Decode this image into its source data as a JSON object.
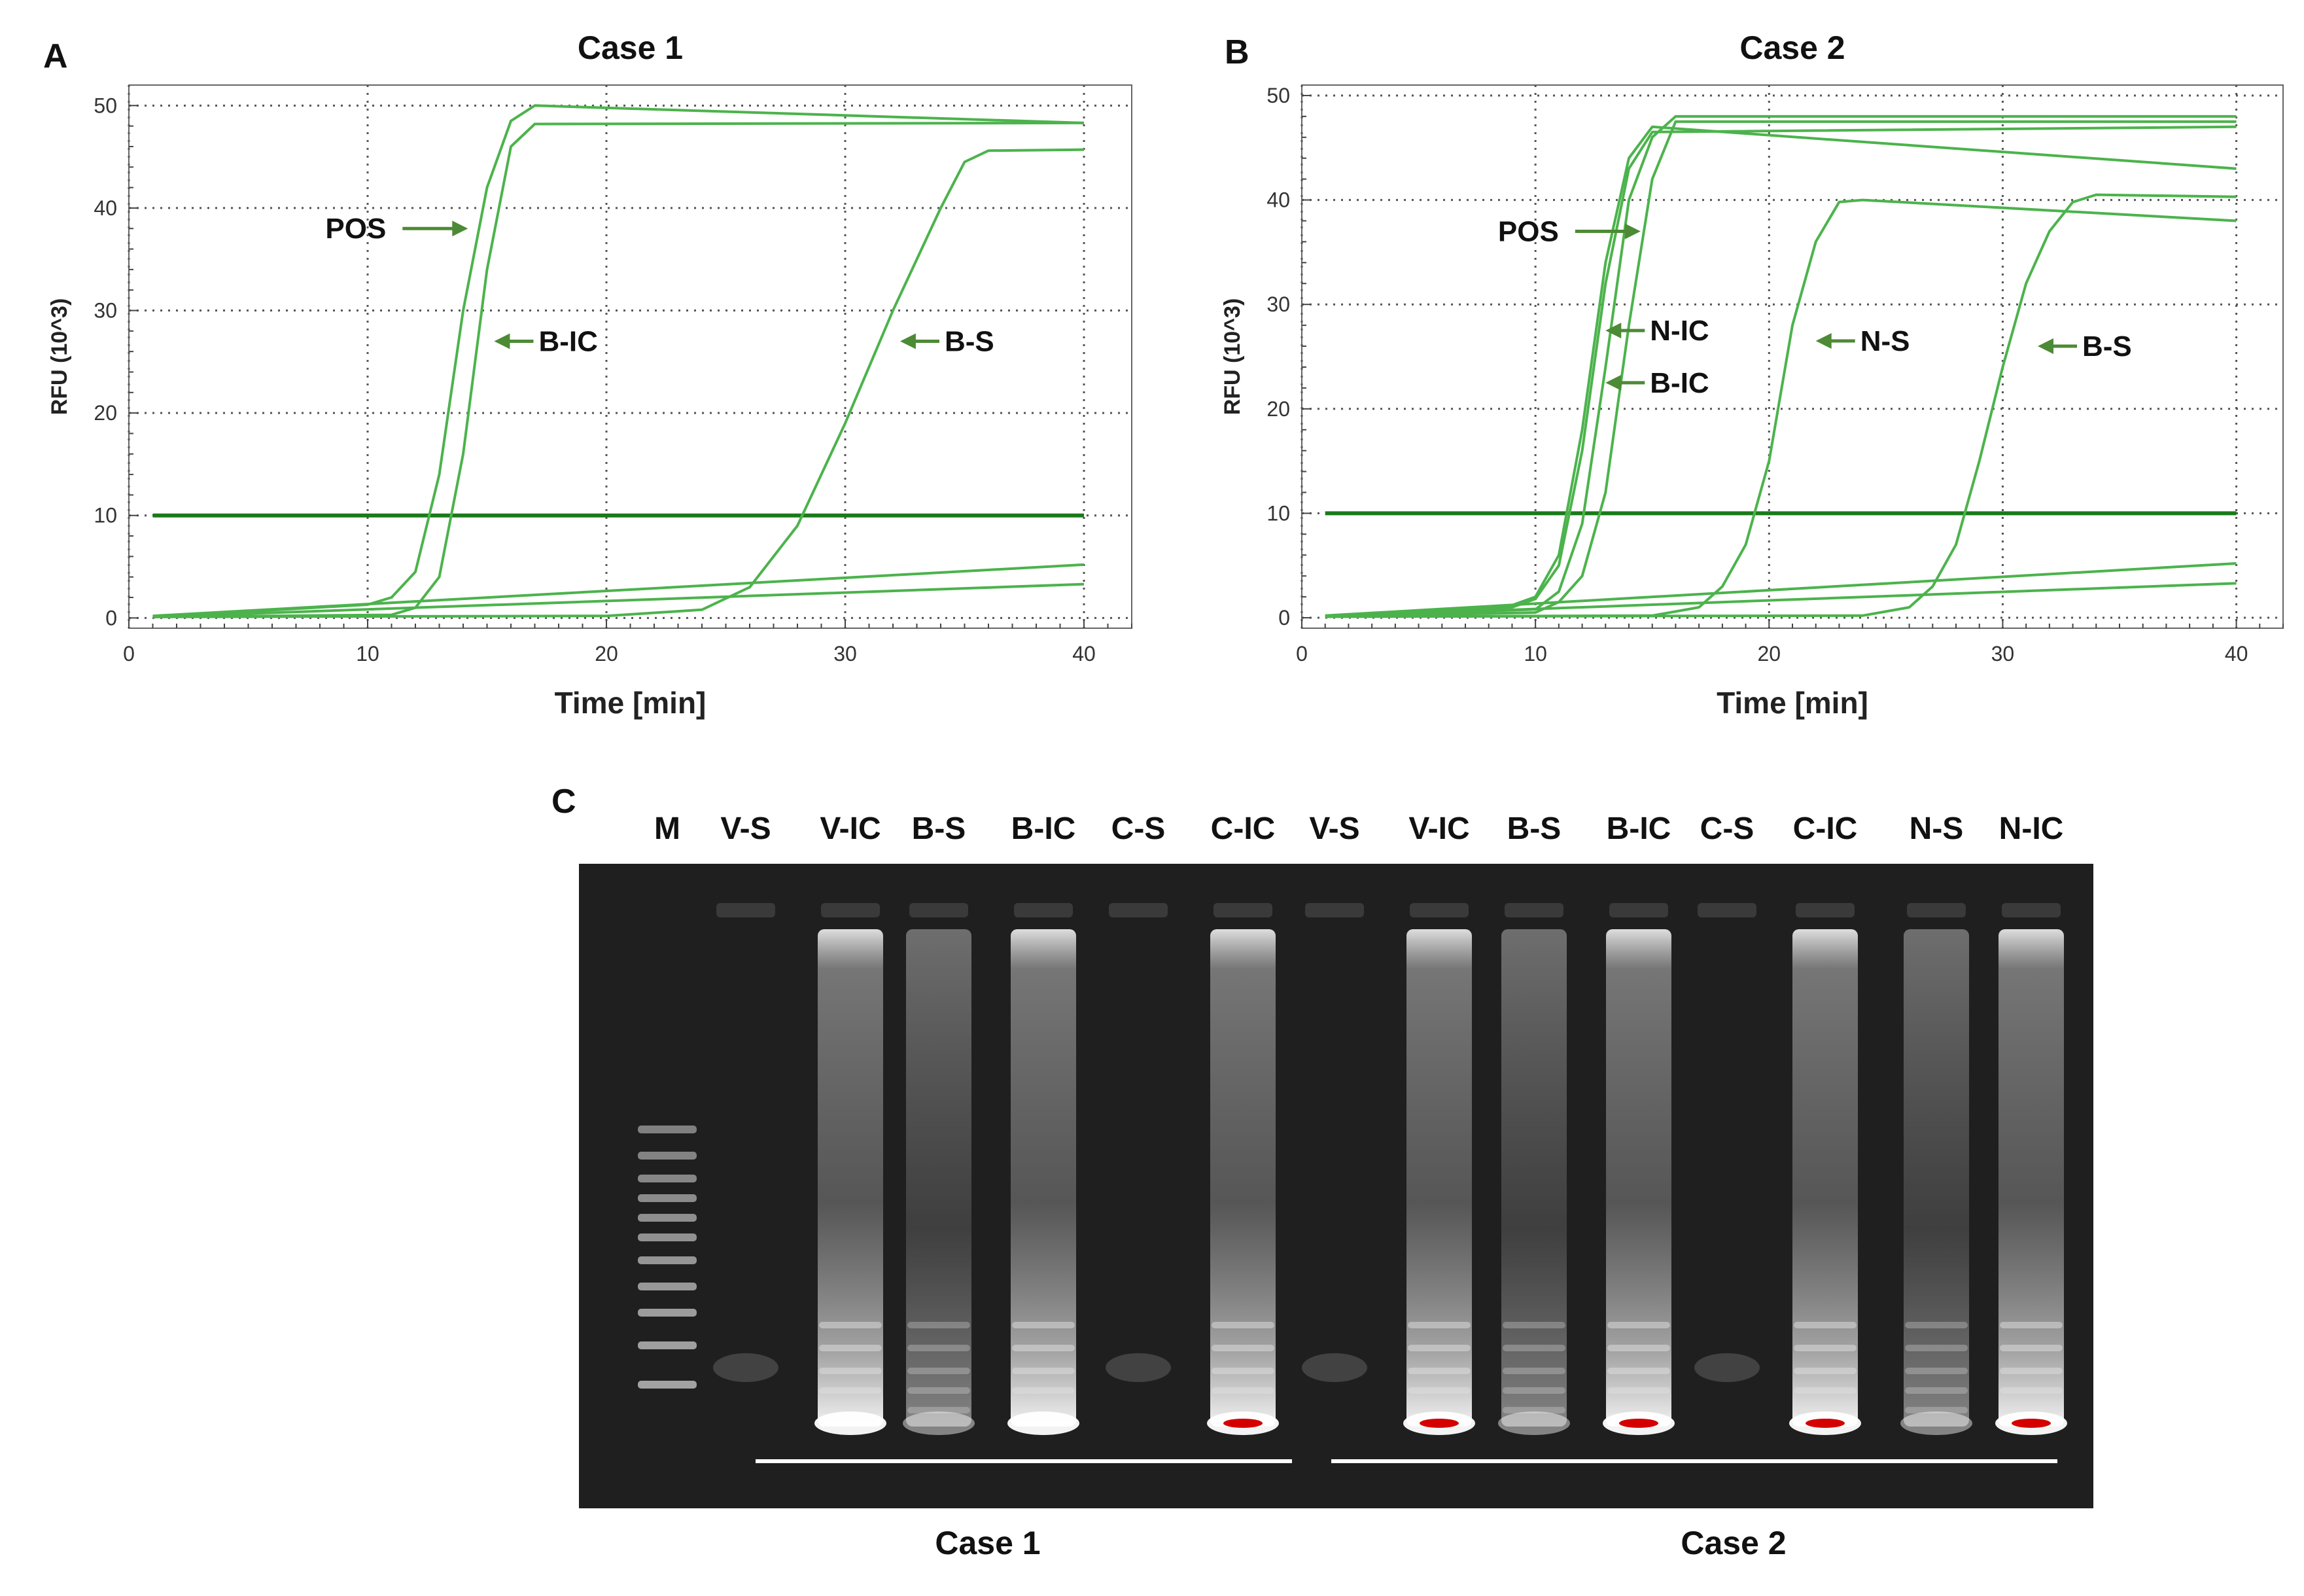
{
  "panels": {
    "a": "A",
    "b": "B",
    "c": "C"
  },
  "colors": {
    "curve": "#4cb34c",
    "threshold": "#1a7a1a",
    "arrow": "#4d8a35",
    "gel": "#1f1f1f"
  },
  "chart_data": [
    {
      "type": "line",
      "title": "Case 1",
      "xlabel": "Time [min]",
      "ylabel": "RFU (10^3)",
      "xlim": [
        0,
        42
      ],
      "ylim": [
        -1,
        52
      ],
      "xticks": [
        "0",
        "10",
        "20",
        "30",
        "40"
      ],
      "yticks": [
        "0",
        "10",
        "20",
        "30",
        "40",
        "50"
      ],
      "grid": true,
      "threshold": 10,
      "series": [
        {
          "points": [
            [
              1,
              0.1
            ],
            [
              10,
              1.3
            ],
            [
              11,
              2
            ],
            [
              12,
              4.5
            ],
            [
              13,
              14
            ],
            [
              14,
              30
            ],
            [
              15,
              42
            ],
            [
              16,
              48.5
            ],
            [
              17,
              50
            ],
            [
              40,
              48.3
            ]
          ]
        },
        {
          "points": [
            [
              1,
              0.1
            ],
            [
              11,
              0.3
            ],
            [
              12,
              1
            ],
            [
              13,
              4
            ],
            [
              14,
              16
            ],
            [
              15,
              34
            ],
            [
              16,
              46
            ],
            [
              17,
              48.2
            ],
            [
              40,
              48.3
            ]
          ]
        },
        {
          "points": [
            [
              1,
              0.1
            ],
            [
              20,
              0.2
            ],
            [
              24,
              0.8
            ],
            [
              26,
              3
            ],
            [
              28,
              9
            ],
            [
              30,
              19
            ],
            [
              32,
              30
            ],
            [
              34,
              40
            ],
            [
              35,
              44.5
            ],
            [
              36,
              45.6
            ],
            [
              40,
              45.7
            ]
          ]
        },
        {
          "points": [
            [
              1,
              0.2
            ],
            [
              40,
              5.2
            ]
          ]
        },
        {
          "points": [
            [
              1,
              0.1
            ],
            [
              40,
              3.3
            ]
          ]
        }
      ],
      "annotations": [
        {
          "text": "POS",
          "x": 14.2,
          "y": 38
        },
        {
          "text": "B-IC",
          "x": 15.3,
          "y": 27
        },
        {
          "text": "B-S",
          "x": 32.3,
          "y": 27
        }
      ]
    },
    {
      "type": "line",
      "title": "Case 2",
      "xlabel": "Time [min]",
      "ylabel": "RFU (10^3)",
      "xlim": [
        0,
        42
      ],
      "ylim": [
        -1,
        51
      ],
      "xticks": [
        "0",
        "10",
        "20",
        "30",
        "40"
      ],
      "yticks": [
        "0",
        "10",
        "20",
        "30",
        "40",
        "50"
      ],
      "grid": true,
      "threshold": 10,
      "series": [
        {
          "points": [
            [
              1,
              0.1
            ],
            [
              9,
              1.2
            ],
            [
              10,
              2
            ],
            [
              11,
              6
            ],
            [
              12,
              18
            ],
            [
              13,
              34
            ],
            [
              14,
              44
            ],
            [
              15,
              47
            ],
            [
              40,
              43
            ]
          ]
        },
        {
          "points": [
            [
              1,
              0.1
            ],
            [
              9,
              1
            ],
            [
              10,
              1.8
            ],
            [
              11,
              5
            ],
            [
              12,
              16
            ],
            [
              13,
              32
            ],
            [
              14,
              43
            ],
            [
              15,
              46.5
            ],
            [
              40,
              47
            ]
          ]
        },
        {
          "points": [
            [
              1,
              0.1
            ],
            [
              10,
              0.8
            ],
            [
              11,
              2.5
            ],
            [
              12,
              9
            ],
            [
              13,
              24
            ],
            [
              14,
              40
            ],
            [
              15,
              46
            ],
            [
              16,
              48
            ],
            [
              40,
              48
            ]
          ]
        },
        {
          "points": [
            [
              1,
              0.1
            ],
            [
              10,
              0.5
            ],
            [
              11,
              1.5
            ],
            [
              12,
              4
            ],
            [
              13,
              12
            ],
            [
              14,
              28
            ],
            [
              15,
              42
            ],
            [
              16,
              47.5
            ],
            [
              40,
              47.5
            ]
          ]
        },
        {
          "points": [
            [
              1,
              0.1
            ],
            [
              15,
              0.2
            ],
            [
              17,
              1
            ],
            [
              18,
              3
            ],
            [
              19,
              7
            ],
            [
              20,
              15
            ],
            [
              21,
              28
            ],
            [
              22,
              36
            ],
            [
              23,
              39.8
            ],
            [
              24,
              40
            ],
            [
              40,
              38
            ]
          ]
        },
        {
          "points": [
            [
              1,
              0.1
            ],
            [
              24,
              0.2
            ],
            [
              26,
              1
            ],
            [
              27,
              3
            ],
            [
              28,
              7
            ],
            [
              29,
              15
            ],
            [
              30,
              24
            ],
            [
              31,
              32
            ],
            [
              32,
              37
            ],
            [
              33,
              39.8
            ],
            [
              34,
              40.5
            ],
            [
              40,
              40.3
            ]
          ]
        },
        {
          "points": [
            [
              1,
              0.2
            ],
            [
              40,
              5.2
            ]
          ]
        },
        {
          "points": [
            [
              1,
              0.1
            ],
            [
              40,
              3.3
            ]
          ]
        }
      ],
      "annotations": [
        {
          "text": "POS",
          "x": 14.5,
          "y": 37
        },
        {
          "text": "N-IC",
          "x": 13,
          "y": 27.5
        },
        {
          "text": "B-IC",
          "x": 13,
          "y": 22.5
        },
        {
          "text": "N-S",
          "x": 22,
          "y": 26.5
        },
        {
          "text": "B-S",
          "x": 31.5,
          "y": 26
        }
      ]
    }
  ],
  "gel": {
    "lanes": [
      "M",
      "V-S",
      "V-IC",
      "B-S",
      "B-IC",
      "C-S",
      "C-IC",
      "V-S",
      "V-IC",
      "B-S",
      "B-IC",
      "C-S",
      "C-IC",
      "N-S",
      "N-IC"
    ],
    "cases": [
      "Case 1",
      "Case 2"
    ]
  }
}
